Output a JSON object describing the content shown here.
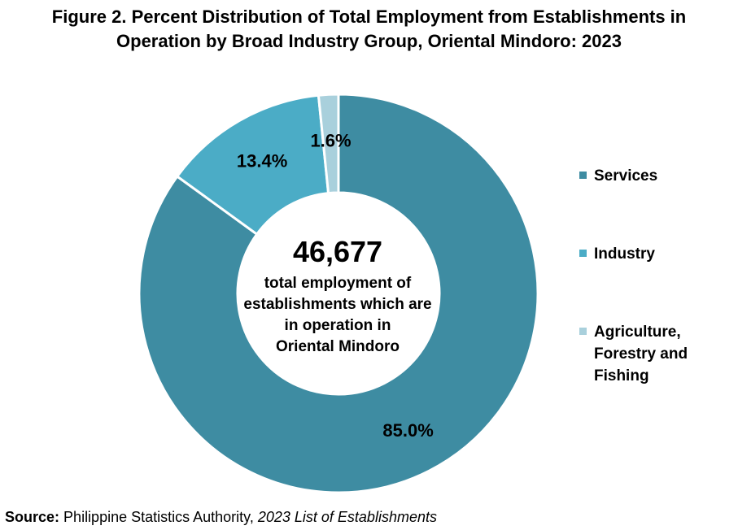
{
  "title_line1": "Figure 2. Percent Distribution of Total Employment from Establishments in",
  "title_line2": "Operation by Broad Industry Group, Oriental Mindoro: 2023",
  "center": {
    "total": "46,677",
    "caption_lines": [
      "total employment of",
      "establishments which are",
      "in operation in",
      "Oriental Mindoro"
    ]
  },
  "source": {
    "label": "Source:",
    "publisher": "Philippine Statistics Authority,",
    "publication": "2023 List of Establishments"
  },
  "chart_data": {
    "type": "pie",
    "donut": true,
    "title": "Figure 2. Percent Distribution of Total Employment from Establishments in Operation by Broad Industry Group, Oriental Mindoro: 2023",
    "categories": [
      "Services",
      "Industry",
      "Agriculture, Forestry and Fishing"
    ],
    "values": [
      85.0,
      13.4,
      1.6
    ],
    "labels": [
      "85.0%",
      "13.4%",
      "1.6%"
    ],
    "colors": [
      "#3E8CA2",
      "#4BACC6",
      "#A9D0DC"
    ],
    "legend": "right",
    "legend_lines": [
      [
        "Services"
      ],
      [
        "Industry"
      ],
      [
        "Agriculture,",
        "Forestry and",
        "Fishing"
      ]
    ]
  }
}
